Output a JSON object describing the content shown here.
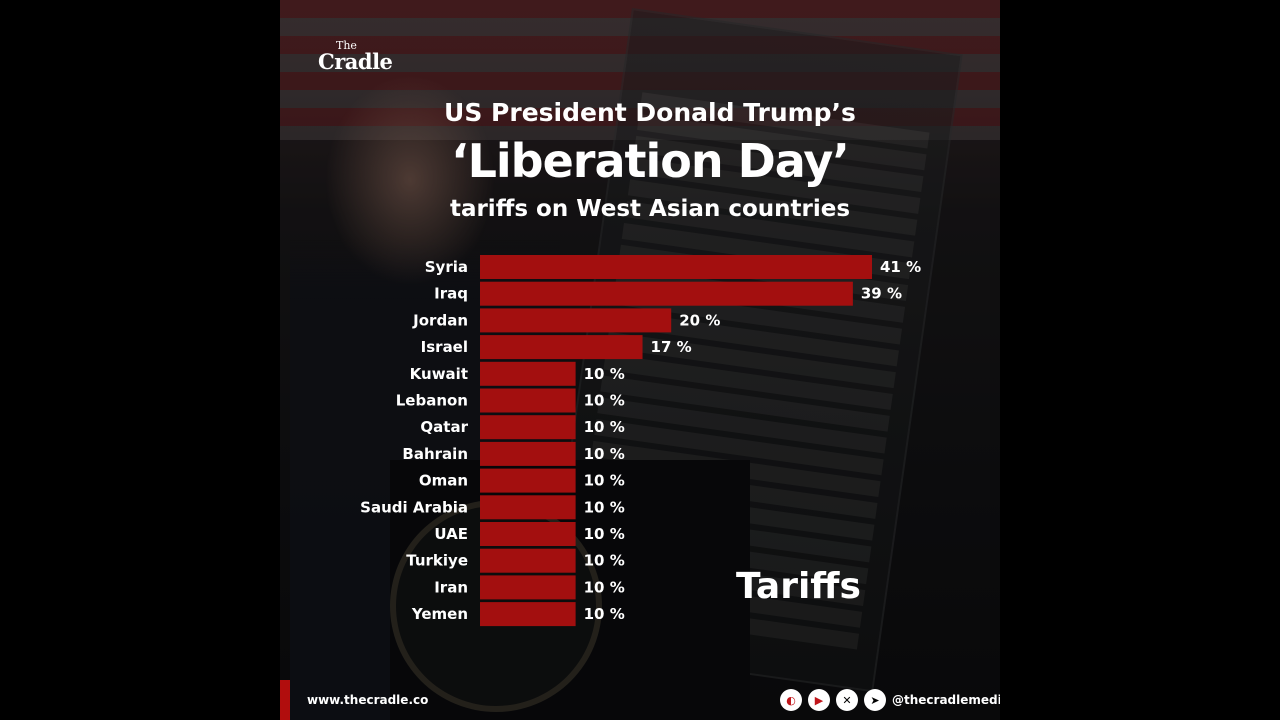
{
  "brand": {
    "logo_the": "The",
    "logo_name": "Cradle"
  },
  "title": {
    "line1": "US President Donald Trump’s",
    "line2": "‘Liberation Day’",
    "line3": "tariffs on West Asian countries"
  },
  "legend_word": "Tariffs",
  "footer": {
    "website": "www.thecradle.co",
    "handle": "@thecradlemedia"
  },
  "social_icons": [
    "cradle-icon",
    "youtube-icon",
    "x-icon",
    "telegram-icon"
  ],
  "colors": {
    "bar": "#a30f0f",
    "text": "#ffffff",
    "accent": "#b10d0d"
  },
  "chart_data": {
    "type": "bar",
    "orientation": "horizontal",
    "categories": [
      "Syria",
      "Iraq",
      "Jordan",
      "Israel",
      "Kuwait",
      "Lebanon",
      "Qatar",
      "Bahrain",
      "Oman",
      "Saudi Arabia",
      "UAE",
      "Turkiye",
      "Iran",
      "Yemen"
    ],
    "values": [
      41,
      39,
      20,
      17,
      10,
      10,
      10,
      10,
      10,
      10,
      10,
      10,
      10,
      10
    ],
    "data_labels": [
      "41 %",
      "39 %",
      "20 %",
      "17 %",
      "10 %",
      "10 %",
      "10 %",
      "10 %",
      "10 %",
      "10 %",
      "10 %",
      "10 %",
      "10 %",
      "10 %"
    ],
    "unit": "%",
    "xlim": [
      0,
      41
    ]
  }
}
